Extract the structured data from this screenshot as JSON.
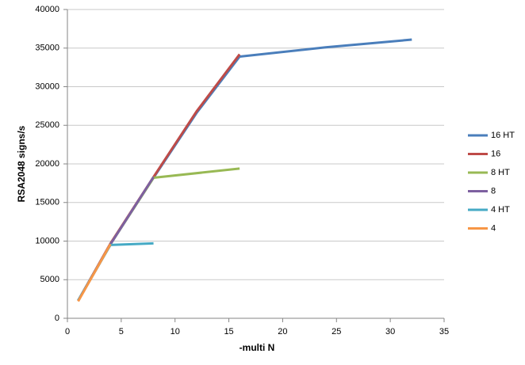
{
  "chart_data": {
    "type": "line",
    "xlabel": "-multi N",
    "ylabel": "RSA2048 signs/s",
    "xlim": [
      0,
      35
    ],
    "xticks": [
      0,
      5,
      10,
      15,
      20,
      25,
      30,
      35
    ],
    "ylim": [
      0,
      40000
    ],
    "yticks": [
      0,
      5000,
      10000,
      15000,
      20000,
      25000,
      30000,
      35000,
      40000
    ],
    "grid": true,
    "legend": "right",
    "series": [
      {
        "name": "16 HT",
        "color": "#4a7ebb",
        "x": [
          1,
          4,
          8,
          12,
          16,
          24,
          32
        ],
        "values": [
          2300,
          9600,
          18200,
          26600,
          33900,
          35100,
          36100
        ]
      },
      {
        "name": "16",
        "color": "#be4b48",
        "x": [
          1,
          4,
          8,
          12,
          16
        ],
        "values": [
          2300,
          9700,
          18300,
          26800,
          34200
        ]
      },
      {
        "name": "8 HT",
        "color": "#98b954",
        "x": [
          1,
          4,
          8,
          16
        ],
        "values": [
          2300,
          9600,
          18200,
          19400
        ]
      },
      {
        "name": "8",
        "color": "#7d60a0",
        "x": [
          1,
          4,
          8
        ],
        "values": [
          2300,
          9600,
          18300
        ]
      },
      {
        "name": "4 HT",
        "color": "#46aac5",
        "x": [
          1,
          4,
          8
        ],
        "values": [
          2300,
          9500,
          9700
        ]
      },
      {
        "name": "4",
        "color": "#f79646",
        "x": [
          1,
          4
        ],
        "values": [
          2200,
          9600
        ]
      }
    ]
  }
}
